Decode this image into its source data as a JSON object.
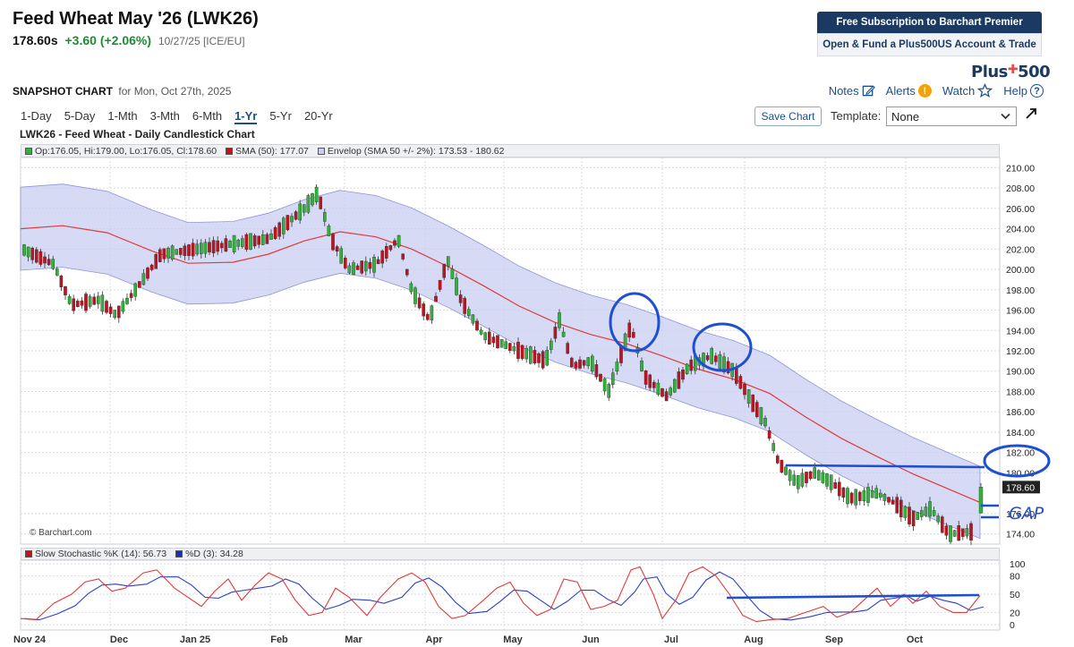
{
  "header": {
    "title": "Feed Wheat May '26 (LWK26)",
    "last": "178.60s",
    "change": "+3.60 (+2.06%)",
    "meta": "10/27/25 [ICE/EU]"
  },
  "promo": {
    "primary": "Free Subscription to Barchart Premier",
    "secondary": "Open & Fund a Plus500US Account & Trade",
    "logo_text": "Plus500"
  },
  "snapshot": {
    "label": "SNAPSHOT CHART",
    "date": "for Mon, Oct 27th, 2025"
  },
  "actions": {
    "notes": "Notes",
    "alerts": "Alerts",
    "watch": "Watch",
    "help": "Help"
  },
  "periods": [
    "1-Day",
    "5-Day",
    "1-Mth",
    "3-Mth",
    "6-Mth",
    "1-Yr",
    "5-Yr",
    "20-Yr"
  ],
  "active_period": "1-Yr",
  "toolbar": {
    "save_chart": "Save Chart",
    "template_label": "Template:",
    "template_value": "None"
  },
  "chart_title": "LWK26 - Feed Wheat - Daily Candlestick Chart",
  "legend": {
    "ohlc": "Op:176.05, Hi:179.00, Lo:176.05, Cl:178.60",
    "sma": "SMA (50): 177.07",
    "envelope": "Envelop (SMA 50 +/- 2%): 173.53 - 180.62"
  },
  "stoch_legend": {
    "k": "Slow Stochastic %K (14): 56.73",
    "d": "%D (3): 34.28"
  },
  "copyright": "© Barchart.com",
  "annotation_text": "GAP",
  "colors": {
    "up": "#2fb33a",
    "down": "#c1121f",
    "sma": "#e03a3a",
    "envelope": "#c9cdf2",
    "k_line": "#e03a3a",
    "d_line": "#2b3fc7",
    "marker": "#1f4fd1",
    "navy": "#1b3a63"
  },
  "chart_data": {
    "type": "candlestick",
    "title": "LWK26 - Feed Wheat - Daily Candlestick Chart",
    "x_labels": [
      "Nov 24",
      "Dec",
      "Jan 25",
      "Feb",
      "Mar",
      "Apr",
      "May",
      "Jun",
      "Jul",
      "Aug",
      "Sep",
      "Oct"
    ],
    "price_ticks": [
      "210.00",
      "208.00",
      "206.00",
      "204.00",
      "202.00",
      "200.00",
      "198.00",
      "196.00",
      "194.00",
      "192.00",
      "190.00",
      "188.00",
      "186.00",
      "184.00",
      "182.00",
      "180.00",
      "178.60",
      "176.00",
      "174.00"
    ],
    "stoch_ticks": [
      "100",
      "80",
      "50",
      "20",
      "0"
    ],
    "ylim": [
      173,
      211
    ],
    "sma_50_last": 177.07,
    "envelope_last": [
      173.53,
      180.62
    ],
    "last_candle": {
      "open": 176.05,
      "high": 179.0,
      "low": 176.05,
      "close": 178.6
    },
    "stochastic": {
      "k": 56.73,
      "d": 34.28
    }
  }
}
